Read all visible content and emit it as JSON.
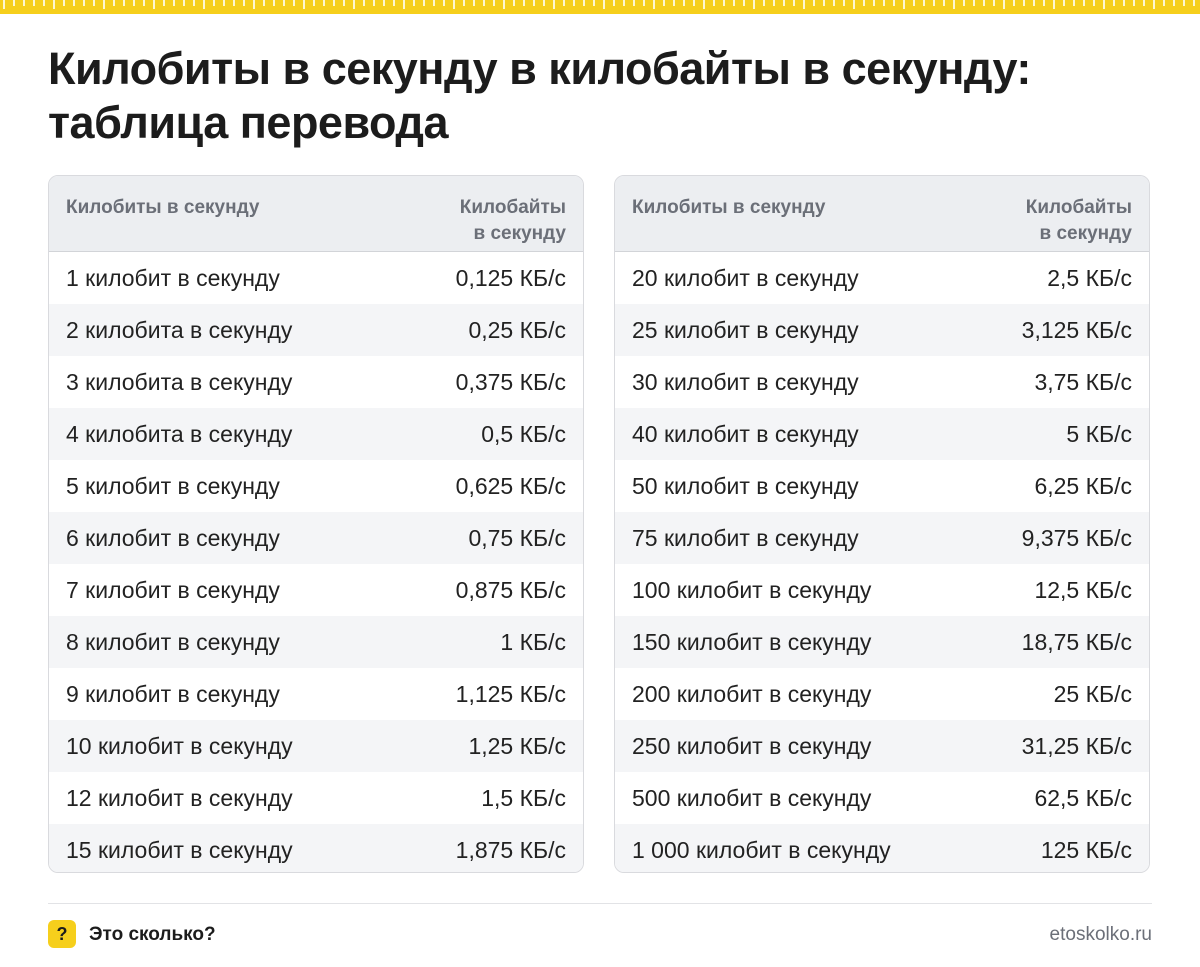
{
  "colors": {
    "accent": "#f6cf1c",
    "header_bg": "#eceef1",
    "stripe_bg": "#f4f5f7",
    "header_text": "#6b6f78"
  },
  "title_line1": "Килобиты в секунду в килобайты в секунду:",
  "title_line2": "таблица перевода",
  "tables": [
    {
      "col1": "Килобиты в секунду",
      "col2_line1": "Килобайты",
      "col2_line2": "в секунду",
      "rows": [
        {
          "label": "1 килобит в секунду",
          "value": "0,125 КБ/с"
        },
        {
          "label": "2 килобита в секунду",
          "value": "0,25 КБ/с"
        },
        {
          "label": "3 килобита в секунду",
          "value": "0,375 КБ/с"
        },
        {
          "label": "4 килобита в секунду",
          "value": "0,5 КБ/с"
        },
        {
          "label": "5 килобит в секунду",
          "value": "0,625 КБ/с"
        },
        {
          "label": "6 килобит в секунду",
          "value": "0,75 КБ/с"
        },
        {
          "label": "7 килобит в секунду",
          "value": "0,875 КБ/с"
        },
        {
          "label": "8 килобит в секунду",
          "value": "1 КБ/с"
        },
        {
          "label": "9 килобит в секунду",
          "value": "1,125 КБ/с"
        },
        {
          "label": "10 килобит в секунду",
          "value": "1,25 КБ/с"
        },
        {
          "label": "12 килобит в секунду",
          "value": "1,5 КБ/с"
        },
        {
          "label": "15 килобит в секунду",
          "value": "1,875 КБ/с"
        }
      ]
    },
    {
      "col1": "Килобиты в секунду",
      "col2_line1": "Килобайты",
      "col2_line2": "в секунду",
      "rows": [
        {
          "label": "20 килобит в секунду",
          "value": "2,5 КБ/с"
        },
        {
          "label": "25 килобит в секунду",
          "value": "3,125 КБ/с"
        },
        {
          "label": "30 килобит в секунду",
          "value": "3,75 КБ/с"
        },
        {
          "label": "40 килобит в секунду",
          "value": "5 КБ/с"
        },
        {
          "label": "50 килобит в секунду",
          "value": "6,25 КБ/с"
        },
        {
          "label": "75 килобит в секунду",
          "value": "9,375 КБ/с"
        },
        {
          "label": "100 килобит в секунду",
          "value": "12,5 КБ/с"
        },
        {
          "label": "150 килобит в секунду",
          "value": "18,75 КБ/с"
        },
        {
          "label": "200 килобит в секунду",
          "value": "25 КБ/с"
        },
        {
          "label": "250 килобит в секунду",
          "value": "31,25 КБ/с"
        },
        {
          "label": "500 килобит в секунду",
          "value": "62,5 КБ/с"
        },
        {
          "label": "1 000 килобит в секунду",
          "value": "125 КБ/с"
        }
      ]
    }
  ],
  "footer": {
    "badge": "?",
    "brand": "Это сколько?",
    "site": "etoskolko.ru"
  }
}
